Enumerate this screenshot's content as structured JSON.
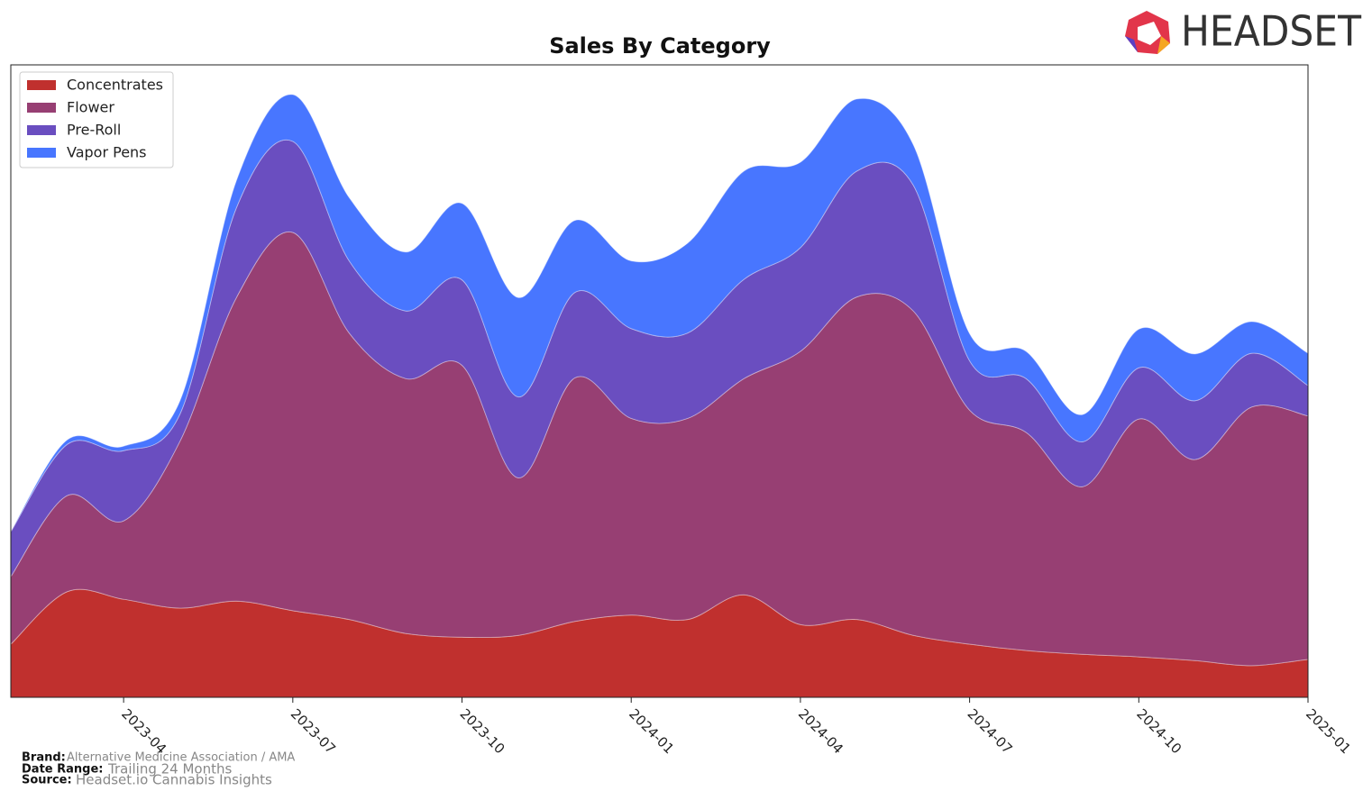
{
  "chart_data": {
    "type": "stacked_area",
    "title": "Sales By Category",
    "x": [
      "2023-02",
      "2023-03",
      "2023-04",
      "2023-05",
      "2023-06",
      "2023-07",
      "2023-08",
      "2023-09",
      "2023-10",
      "2023-11",
      "2023-12",
      "2024-01",
      "2024-02",
      "2024-03",
      "2024-04",
      "2024-05",
      "2024-06",
      "2024-07",
      "2024-08",
      "2024-09",
      "2024-10",
      "2024-11",
      "2024-12",
      "2025-01"
    ],
    "xlim": [
      "2023-02",
      "2025-01"
    ],
    "xticks": [
      "2023-04",
      "2023-07",
      "2023-10",
      "2024-01",
      "2024-04",
      "2024-07",
      "2024-10",
      "2025-01"
    ],
    "ylim": [
      0,
      100
    ],
    "legend": "upper left",
    "series": [
      {
        "name": "Concentrates",
        "color": "#c0302e",
        "values": [
          8.4,
          16.7,
          15.5,
          14.1,
          15.2,
          13.7,
          12.3,
          10.1,
          9.5,
          9.8,
          12.0,
          13.0,
          12.3,
          16.2,
          11.5,
          12.3,
          9.8,
          8.4,
          7.4,
          6.8,
          6.4,
          5.8,
          5.0,
          6.0
        ]
      },
      {
        "name": "Flower",
        "color": "#973f73",
        "values": [
          10.7,
          15.2,
          12.4,
          26.4,
          48.0,
          59.8,
          45.3,
          40.3,
          43.0,
          24.9,
          38.5,
          31.1,
          31.8,
          34.2,
          43.2,
          51.0,
          51.3,
          37.0,
          34.5,
          26.5,
          37.6,
          31.8,
          40.9,
          38.5
        ]
      },
      {
        "name": "Pre-Roll",
        "color": "#6a4ec0",
        "values": [
          7.1,
          8.1,
          11.1,
          4.3,
          14.2,
          14.4,
          11.4,
          10.7,
          13.5,
          12.8,
          13.5,
          14.2,
          13.5,
          15.7,
          16.4,
          19.9,
          19.9,
          7.8,
          8.5,
          7.1,
          8.1,
          9.3,
          8.5,
          4.8
        ]
      },
      {
        "name": "Vapor Pens",
        "color": "#4876ff",
        "values": [
          0,
          0.7,
          0.7,
          2.1,
          4.3,
          7.4,
          10.0,
          9.3,
          12.1,
          15.7,
          11.4,
          10.7,
          14.2,
          17.1,
          13.5,
          11.4,
          6.4,
          4.3,
          4.3,
          4.3,
          6.1,
          7.4,
          5.0,
          5.1
        ]
      }
    ]
  },
  "footer": {
    "brand_label": "Brand:",
    "brand": "Alternative Medicine Association / AMA",
    "range_label": "Date Range:",
    "range": "Trailing 24 Months",
    "source_label": "Source:",
    "source": "Headset.io Cannabis Insights"
  },
  "logo": "HEADSET"
}
